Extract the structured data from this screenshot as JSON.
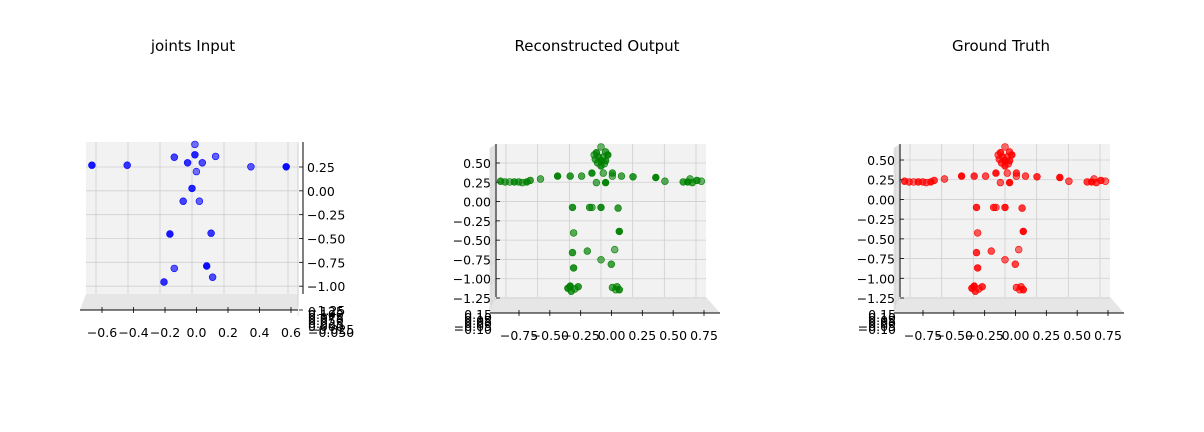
{
  "figure": {
    "colors": {
      "pane": "#f2f2f2",
      "grid": "#cfcfcf",
      "axis": "#000000"
    }
  },
  "chart_data": [
    {
      "type": "scatter",
      "title": "joints Input",
      "color": "#0000ff",
      "x_ticks": [
        "−0.6",
        "−0.4",
        "−0.2",
        "0.0",
        "0.2",
        "0.4",
        "0.6"
      ],
      "y_ticks": [
        "0.25",
        "0.00",
        "−0.25",
        "−0.50",
        "−0.75",
        "−1.00",
        "−1.25"
      ],
      "z_ticks": [
        "0.125",
        "0.100",
        "0.075",
        "0.050",
        "0.025",
        "0.000",
        "−0.025",
        "−0.050"
      ],
      "xlim": [
        -0.72,
        0.72
      ],
      "ylim": [
        -1.45,
        0.45
      ],
      "points": [
        [
          0.02,
          0.42
        ],
        [
          0.02,
          0.29
        ],
        [
          -0.12,
          0.26
        ],
        [
          0.16,
          0.27
        ],
        [
          -0.68,
          0.16
        ],
        [
          -0.44,
          0.16
        ],
        [
          0.4,
          0.14
        ],
        [
          0.64,
          0.14
        ],
        [
          -0.03,
          0.19
        ],
        [
          0.07,
          0.19
        ],
        [
          0.03,
          0.08
        ],
        [
          0.0,
          -0.13
        ],
        [
          -0.06,
          -0.29
        ],
        [
          0.05,
          -0.29
        ],
        [
          -0.15,
          -0.7
        ],
        [
          0.13,
          -0.69
        ],
        [
          -0.12,
          -1.13
        ],
        [
          0.1,
          -1.1
        ],
        [
          -0.19,
          -1.3
        ],
        [
          0.14,
          -1.24
        ]
      ]
    },
    {
      "type": "scatter",
      "title": "Reconstructed Output",
      "color": "#008000",
      "x_ticks": [
        "−0.75",
        "−0.50",
        "−0.25",
        "0.00",
        "0.25",
        "0.50",
        "0.75"
      ],
      "y_ticks": [
        "0.50",
        "0.25",
        "0.00",
        "−0.25",
        "−0.50",
        "−0.75",
        "−1.00",
        "−1.25"
      ],
      "z_ticks": [
        "0.15",
        "0.10",
        "0.05",
        "0.00",
        "−0.05",
        "−0.10"
      ],
      "xlim": [
        -0.92,
        0.92
      ],
      "ylim": [
        -1.4,
        0.7
      ],
      "points": [
        [
          0.0,
          0.66
        ],
        [
          -0.04,
          0.58
        ],
        [
          0.04,
          0.59
        ],
        [
          -0.06,
          0.55
        ],
        [
          0.06,
          0.55
        ],
        [
          -0.02,
          0.52
        ],
        [
          0.02,
          0.52
        ],
        [
          0.0,
          0.47
        ],
        [
          0.04,
          0.47
        ],
        [
          -0.05,
          0.49
        ],
        [
          0.03,
          0.43
        ],
        [
          0.0,
          0.4
        ],
        [
          -0.03,
          0.44
        ],
        [
          0.02,
          0.3
        ],
        [
          -0.08,
          0.3
        ],
        [
          0.1,
          0.3
        ],
        [
          -0.04,
          0.17
        ],
        [
          0.04,
          0.17
        ],
        [
          -0.88,
          0.19
        ],
        [
          -0.84,
          0.18
        ],
        [
          -0.8,
          0.18
        ],
        [
          -0.76,
          0.18
        ],
        [
          -0.72,
          0.18
        ],
        [
          -0.69,
          0.17
        ],
        [
          -0.65,
          0.18
        ],
        [
          -0.62,
          0.2
        ],
        [
          -0.53,
          0.22
        ],
        [
          -0.38,
          0.26
        ],
        [
          -0.27,
          0.26
        ],
        [
          -0.17,
          0.26
        ],
        [
          0.88,
          0.19
        ],
        [
          0.84,
          0.2
        ],
        [
          0.8,
          0.17
        ],
        [
          0.78,
          0.22
        ],
        [
          0.76,
          0.18
        ],
        [
          0.72,
          0.18
        ],
        [
          0.56,
          0.19
        ],
        [
          0.48,
          0.24
        ],
        [
          0.28,
          0.25
        ],
        [
          0.18,
          0.26
        ],
        [
          0.1,
          0.26
        ],
        [
          -0.25,
          -0.17
        ],
        [
          -0.1,
          -0.17
        ],
        [
          -0.08,
          -0.17
        ],
        [
          0.0,
          -0.17
        ],
        [
          0.15,
          -0.18
        ],
        [
          -0.24,
          -0.52
        ],
        [
          0.16,
          -0.5
        ],
        [
          -0.25,
          -0.79
        ],
        [
          -0.12,
          -0.77
        ],
        [
          0.12,
          -0.75
        ],
        [
          -0.24,
          -1.0
        ],
        [
          0.09,
          -0.95
        ],
        [
          0.0,
          -0.89
        ],
        [
          -0.29,
          -1.28
        ],
        [
          -0.26,
          -1.32
        ],
        [
          -0.23,
          -1.29
        ],
        [
          -0.27,
          -1.25
        ],
        [
          -0.2,
          -1.26
        ],
        [
          0.1,
          -1.27
        ],
        [
          0.13,
          -1.3
        ],
        [
          0.16,
          -1.3
        ],
        [
          0.14,
          -1.26
        ]
      ]
    },
    {
      "type": "scatter",
      "title": "Ground Truth",
      "color": "#ff0000",
      "x_ticks": [
        "−0.75",
        "−0.50",
        "−0.25",
        "0.00",
        "0.25",
        "0.50",
        "0.75"
      ],
      "y_ticks": [
        "0.50",
        "0.25",
        "0.00",
        "−0.25",
        "−0.50",
        "−0.75",
        "−1.00",
        "−1.25"
      ],
      "z_ticks": [
        "0.15",
        "0.10",
        "0.05",
        "0.00",
        "−0.05",
        "−0.10"
      ],
      "xlim": [
        -0.92,
        0.92
      ],
      "ylim": [
        -1.4,
        0.7
      ],
      "points": [
        [
          0.0,
          0.66
        ],
        [
          -0.04,
          0.58
        ],
        [
          0.04,
          0.59
        ],
        [
          -0.06,
          0.55
        ],
        [
          0.06,
          0.55
        ],
        [
          -0.02,
          0.52
        ],
        [
          0.02,
          0.52
        ],
        [
          0.0,
          0.47
        ],
        [
          0.04,
          0.47
        ],
        [
          -0.05,
          0.49
        ],
        [
          0.03,
          0.43
        ],
        [
          0.0,
          0.4
        ],
        [
          -0.03,
          0.44
        ],
        [
          0.02,
          0.3
        ],
        [
          -0.08,
          0.3
        ],
        [
          0.1,
          0.3
        ],
        [
          -0.04,
          0.17
        ],
        [
          0.04,
          0.17
        ],
        [
          -0.88,
          0.19
        ],
        [
          -0.84,
          0.18
        ],
        [
          -0.8,
          0.18
        ],
        [
          -0.76,
          0.18
        ],
        [
          -0.72,
          0.18
        ],
        [
          -0.69,
          0.17
        ],
        [
          -0.65,
          0.18
        ],
        [
          -0.62,
          0.2
        ],
        [
          -0.53,
          0.22
        ],
        [
          -0.38,
          0.26
        ],
        [
          -0.27,
          0.26
        ],
        [
          -0.17,
          0.26
        ],
        [
          0.88,
          0.19
        ],
        [
          0.84,
          0.2
        ],
        [
          0.8,
          0.17
        ],
        [
          0.78,
          0.22
        ],
        [
          0.76,
          0.18
        ],
        [
          0.72,
          0.18
        ],
        [
          0.56,
          0.19
        ],
        [
          0.48,
          0.24
        ],
        [
          0.28,
          0.25
        ],
        [
          0.18,
          0.26
        ],
        [
          0.1,
          0.26
        ],
        [
          -0.25,
          -0.17
        ],
        [
          -0.1,
          -0.17
        ],
        [
          -0.08,
          -0.17
        ],
        [
          0.0,
          -0.17
        ],
        [
          0.15,
          -0.18
        ],
        [
          -0.24,
          -0.52
        ],
        [
          0.16,
          -0.5
        ],
        [
          -0.25,
          -0.79
        ],
        [
          -0.12,
          -0.77
        ],
        [
          0.12,
          -0.75
        ],
        [
          -0.24,
          -1.0
        ],
        [
          0.09,
          -0.95
        ],
        [
          0.0,
          -0.89
        ],
        [
          -0.29,
          -1.28
        ],
        [
          -0.26,
          -1.32
        ],
        [
          -0.23,
          -1.29
        ],
        [
          -0.27,
          -1.25
        ],
        [
          -0.2,
          -1.26
        ],
        [
          0.1,
          -1.27
        ],
        [
          0.13,
          -1.3
        ],
        [
          0.16,
          -1.3
        ],
        [
          0.14,
          -1.26
        ]
      ]
    }
  ]
}
